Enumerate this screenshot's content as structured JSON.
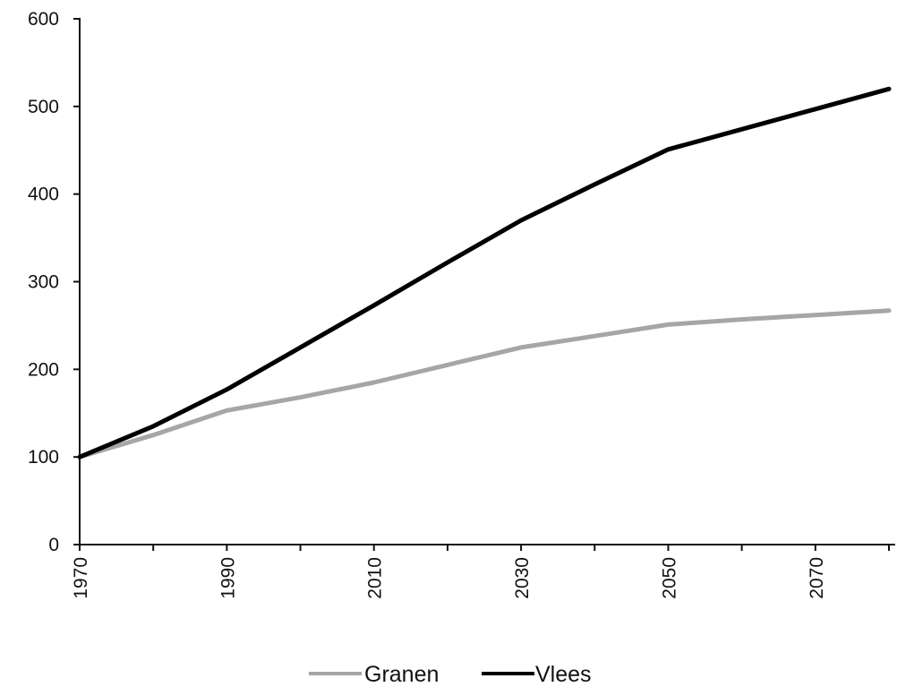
{
  "chart_data": {
    "type": "line",
    "x": [
      1970,
      1980,
      1990,
      2000,
      2010,
      2020,
      2030,
      2040,
      2050,
      2060,
      2070,
      2080
    ],
    "x_tick_labels": [
      "1970",
      "1990",
      "2010",
      "2030",
      "2050",
      "2070"
    ],
    "xlim": [
      1970,
      2080
    ],
    "ylim": [
      0,
      600
    ],
    "y_ticks": [
      0,
      100,
      200,
      300,
      400,
      500,
      600
    ],
    "series": [
      {
        "name": "Granen",
        "color": "#a6a6a6",
        "values": [
          100,
          125,
          153,
          168,
          185,
          205,
          225,
          238,
          251,
          257,
          262,
          267
        ]
      },
      {
        "name": "Vlees",
        "color": "#000000",
        "values": [
          100,
          135,
          177,
          225,
          273,
          322,
          370,
          411,
          451,
          474,
          497,
          520
        ]
      }
    ],
    "title": "",
    "xlabel": "",
    "ylabel": "",
    "grid": false,
    "legend_position": "bottom-center"
  }
}
